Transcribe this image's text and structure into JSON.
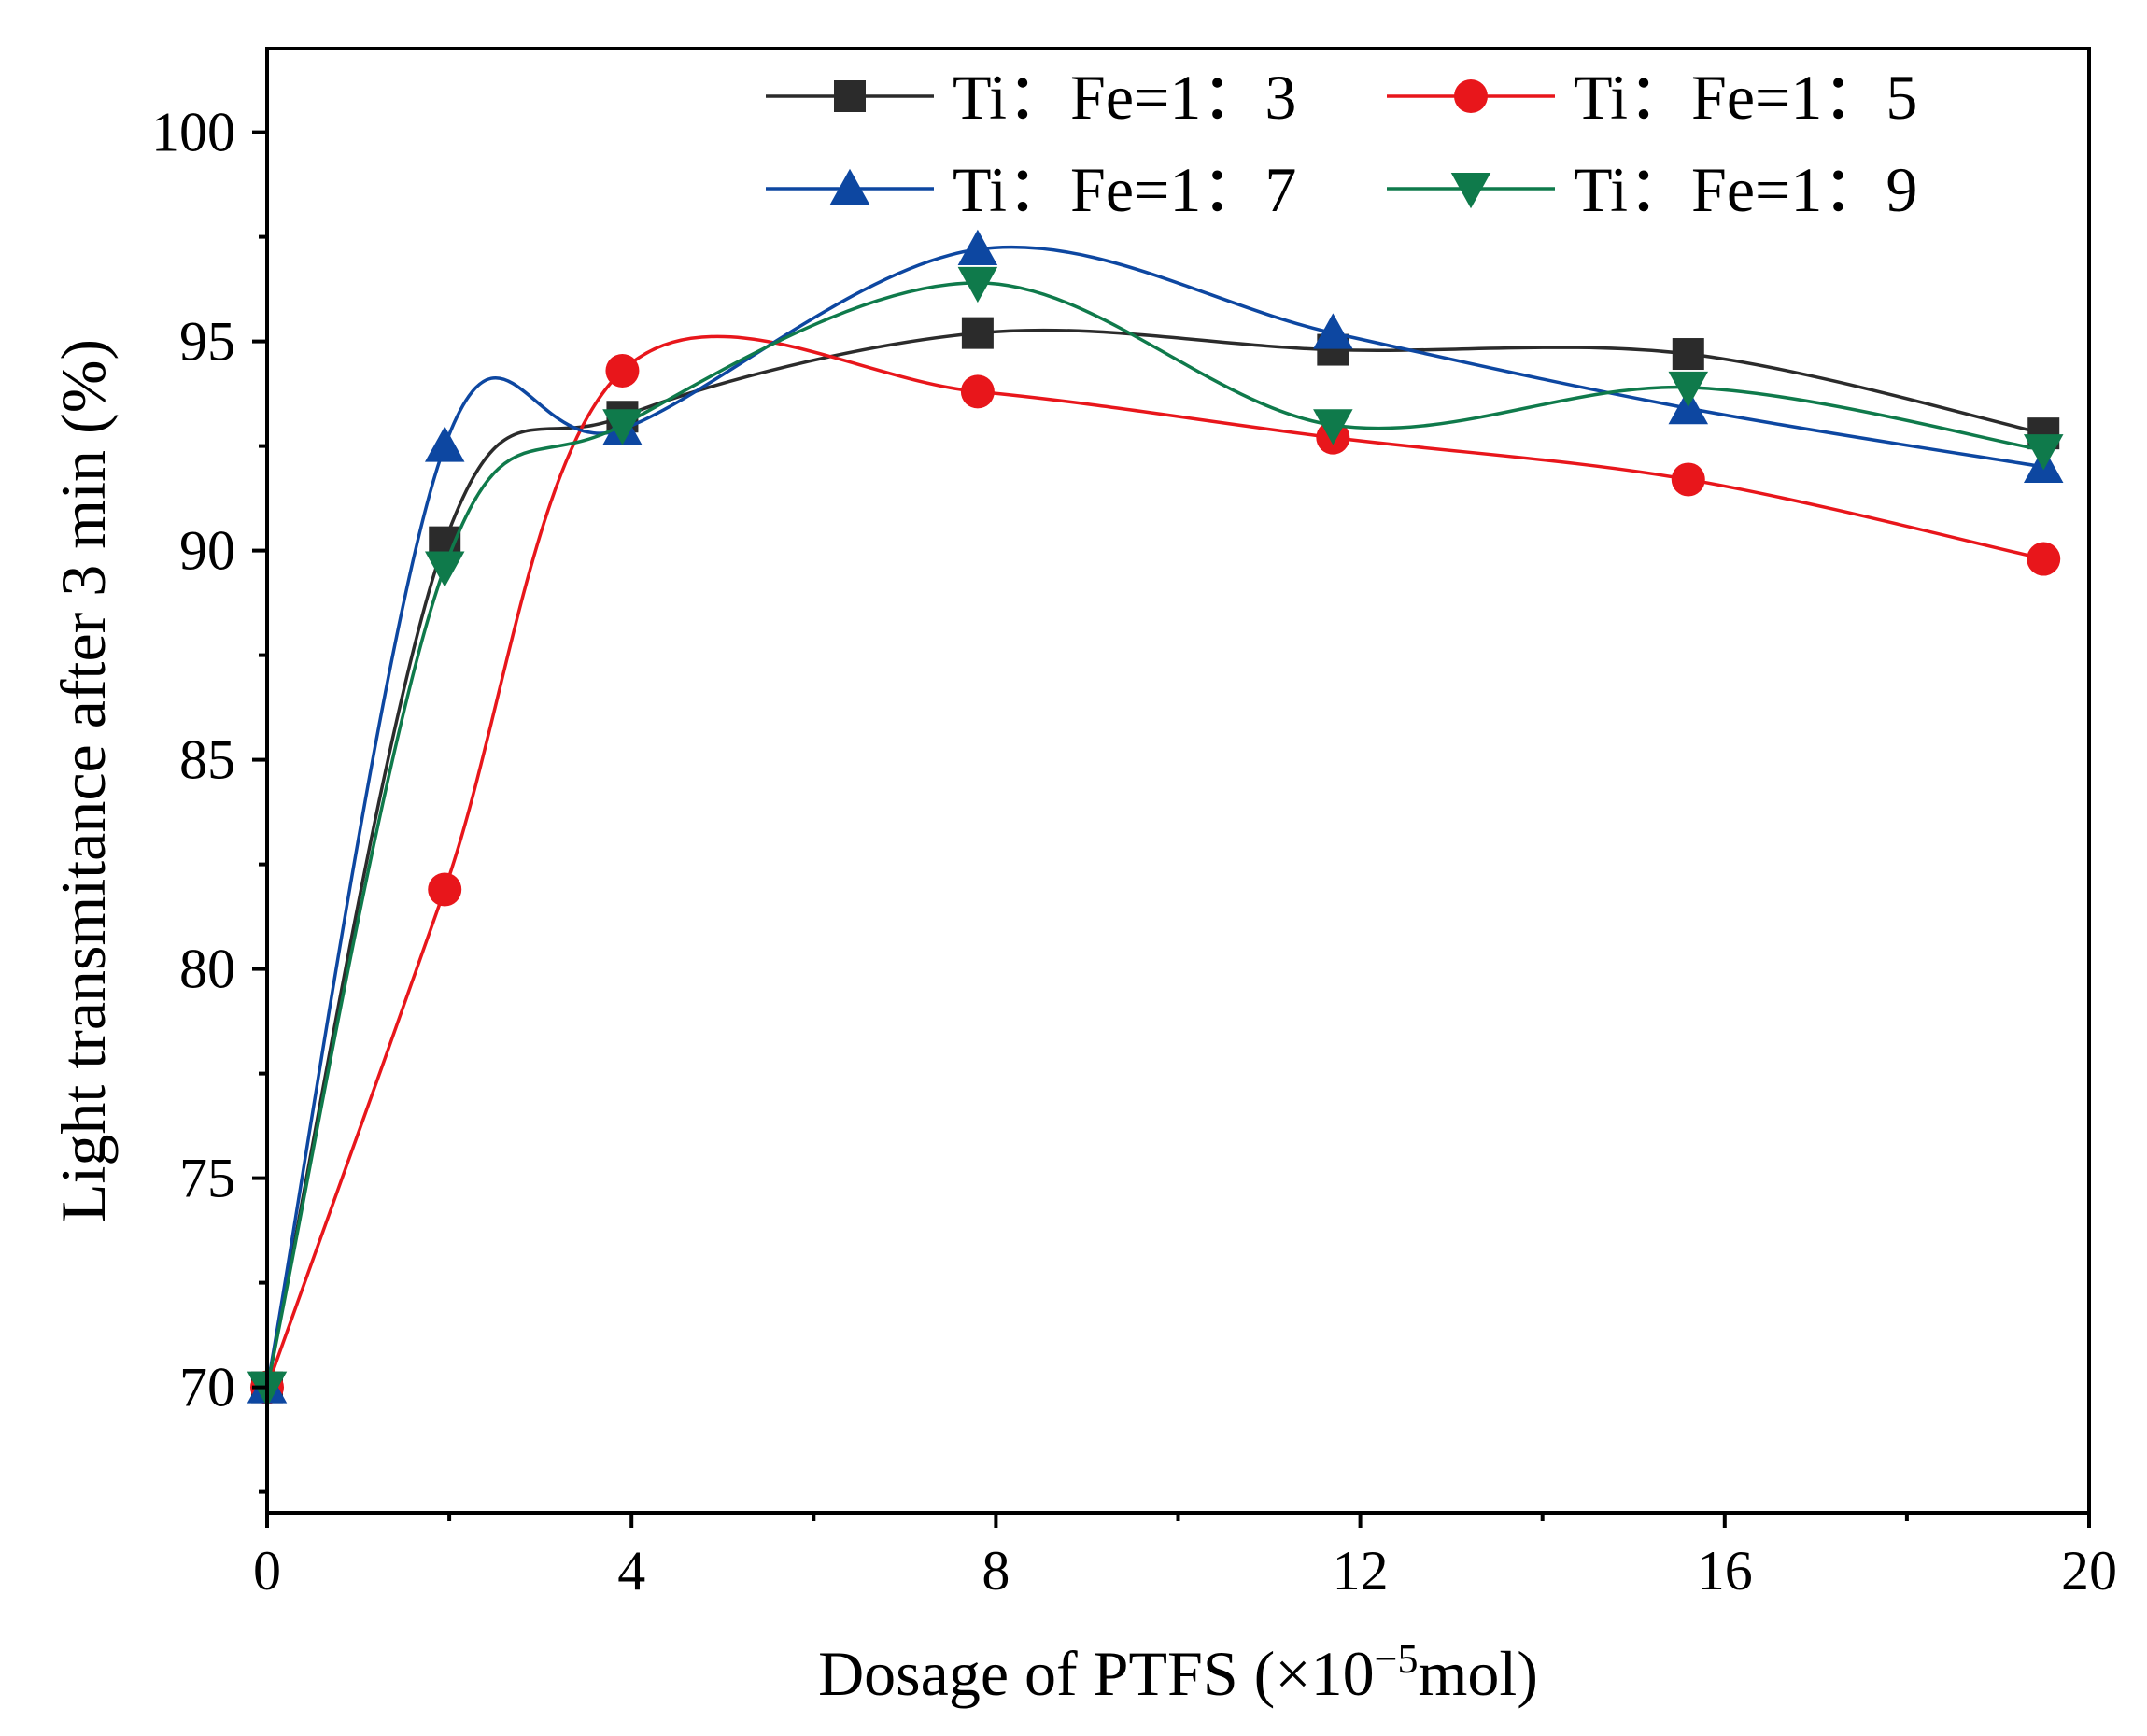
{
  "chart_data": {
    "type": "line",
    "xlabel": "Dosage of PTFS (×10",
    "xlabel_sup": "−5",
    "xlabel_tail": "mol)",
    "ylabel": "Light transmitance after 3 min (%)",
    "xlim": [
      0,
      20
    ],
    "ylim": [
      67,
      102
    ],
    "x_ticks": [
      0,
      4,
      8,
      12,
      16,
      20
    ],
    "x_tick_labels": [
      "0",
      "4",
      "8",
      "12",
      "16",
      "20"
    ],
    "y_ticks": [
      70,
      75,
      80,
      85,
      90,
      95,
      100
    ],
    "y_tick_labels": [
      "70",
      "75",
      "80",
      "85",
      "90",
      "95",
      "100"
    ],
    "grid": false,
    "legend_position": "top-right",
    "series": [
      {
        "name": "Ti：Fe=1：3",
        "color": "#2b2b2b",
        "marker": "square",
        "x": [
          0,
          1.95,
          3.9,
          7.8,
          11.7,
          15.6,
          19.5
        ],
        "y": [
          70.0,
          90.2,
          93.2,
          95.2,
          94.8,
          94.7,
          92.8
        ]
      },
      {
        "name": "Ti：Fe=1：5",
        "color": "#e8161b",
        "marker": "circle",
        "x": [
          0,
          1.95,
          3.9,
          7.8,
          11.7,
          15.6,
          19.5
        ],
        "y": [
          70.0,
          81.9,
          94.3,
          93.8,
          92.7,
          91.7,
          89.8
        ]
      },
      {
        "name": "Ti：Fe=1：7",
        "color": "#0d47a1",
        "marker": "triangle-up",
        "x": [
          0,
          1.95,
          3.9,
          7.8,
          11.7,
          15.6,
          19.5
        ],
        "y": [
          70.0,
          92.5,
          92.9,
          97.2,
          95.2,
          93.4,
          92.0
        ]
      },
      {
        "name": "Ti：Fe=1：9",
        "color": "#0f7a4b",
        "marker": "triangle-down",
        "x": [
          0,
          1.95,
          3.9,
          7.8,
          11.7,
          15.6,
          19.5
        ],
        "y": [
          70.0,
          89.6,
          93.0,
          96.4,
          93.0,
          93.9,
          92.4
        ]
      }
    ]
  }
}
